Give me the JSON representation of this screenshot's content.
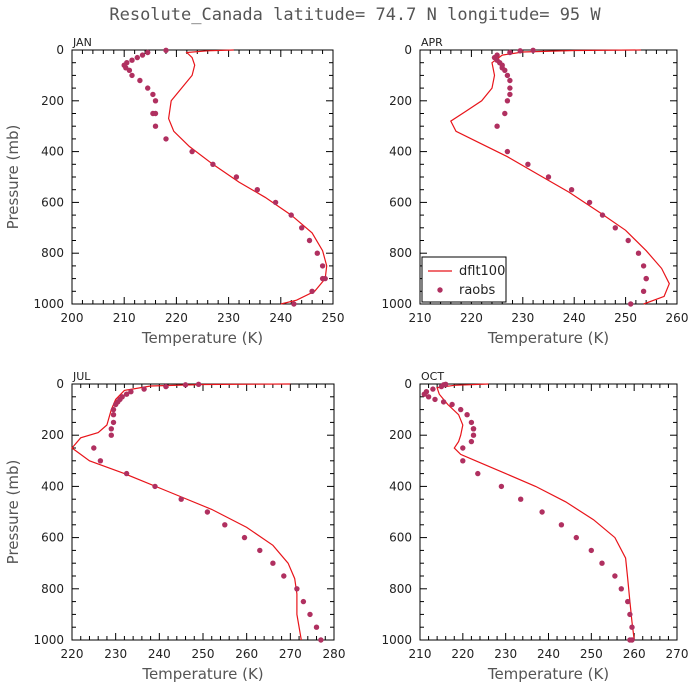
{
  "title": "Resolute_Canada  latitude= 74.7 N longitude= 95 W",
  "legend": {
    "model_label": "dflt100",
    "obs_label": "raobs"
  },
  "colors": {
    "model": "#e8141a",
    "obs": "#b03060"
  },
  "chart_data": [
    {
      "type": "line",
      "panel": "JAN",
      "title": "JAN",
      "xlabel": "Temperature (K)",
      "ylabel": "Pressure (mb)",
      "xlim": [
        200,
        250
      ],
      "ylim": [
        1000,
        0
      ],
      "xticks": [
        200,
        210,
        220,
        230,
        240,
        250
      ],
      "yticks": [
        0,
        200,
        400,
        600,
        800,
        1000
      ],
      "series": [
        {
          "name": "dflt100",
          "kind": "line",
          "x": [
            231,
            226,
            222,
            223,
            223.5,
            223,
            221,
            219,
            218.5,
            219.5,
            222.5,
            227,
            232,
            237,
            242,
            246,
            248,
            248.8,
            248.5,
            246.5,
            243,
            240
          ],
          "y": [
            0,
            3,
            10,
            30,
            60,
            100,
            150,
            200,
            270,
            320,
            380,
            450,
            520,
            580,
            650,
            720,
            790,
            850,
            900,
            950,
            985,
            1000
          ]
        },
        {
          "name": "raobs",
          "kind": "scatter",
          "x": [
            218,
            214.5,
            213.5,
            212.5,
            211.5,
            210.5,
            210,
            210.3,
            211,
            211.5,
            213,
            214.5,
            215.5,
            216,
            216,
            215.5,
            216,
            218,
            223,
            227,
            231.5,
            235.5,
            239,
            242,
            244,
            245.5,
            247,
            248,
            248.5,
            248,
            246,
            242.5
          ],
          "y": [
            1,
            10,
            20,
            30,
            40,
            50,
            60,
            70,
            80,
            100,
            120,
            150,
            175,
            200,
            250,
            250,
            300,
            350,
            400,
            450,
            500,
            550,
            600,
            650,
            700,
            750,
            800,
            850,
            900,
            900,
            950,
            1000
          ]
        }
      ]
    },
    {
      "type": "line",
      "panel": "APR",
      "title": "APR",
      "xlabel": "Temperature (K)",
      "ylabel": "",
      "xlim": [
        210,
        260
      ],
      "ylim": [
        1000,
        0
      ],
      "xticks": [
        210,
        220,
        230,
        240,
        250,
        260
      ],
      "yticks": [
        0,
        200,
        400,
        600,
        800,
        1000
      ],
      "show_legend": true,
      "series": [
        {
          "name": "dflt100",
          "kind": "line",
          "x": [
            253,
            240,
            230,
            226,
            224,
            224.5,
            224,
            222,
            219,
            216,
            217,
            221,
            227,
            233,
            239,
            245,
            250,
            254,
            257,
            258.5,
            257.5,
            253.5
          ],
          "y": [
            0,
            2,
            8,
            20,
            50,
            100,
            150,
            200,
            240,
            280,
            320,
            360,
            420,
            490,
            560,
            640,
            710,
            790,
            860,
            920,
            970,
            1000
          ]
        },
        {
          "name": "raobs",
          "kind": "scatter",
          "x": [
            232,
            229.5,
            227.5,
            225,
            224.5,
            225,
            225.5,
            226,
            226,
            226.5,
            227,
            227.5,
            227.5,
            227.5,
            227,
            226.5,
            225,
            227,
            231,
            235,
            239.5,
            243,
            245.5,
            248,
            250.5,
            252.5,
            253.5,
            254,
            254,
            253.5,
            251
          ],
          "y": [
            1,
            3,
            10,
            20,
            30,
            40,
            50,
            60,
            70,
            80,
            100,
            120,
            150,
            175,
            200,
            250,
            300,
            400,
            450,
            500,
            550,
            600,
            650,
            700,
            750,
            800,
            850,
            900,
            900,
            950,
            1000
          ]
        }
      ]
    },
    {
      "type": "line",
      "panel": "JUL",
      "title": "JUL",
      "xlabel": "Temperature (K)",
      "ylabel": "Pressure (mb)",
      "xlim": [
        220,
        280
      ],
      "ylim": [
        1000,
        0
      ],
      "xticks": [
        220,
        230,
        240,
        250,
        260,
        270,
        280
      ],
      "yticks": [
        0,
        200,
        400,
        600,
        800,
        1000
      ],
      "series": [
        {
          "name": "dflt100",
          "kind": "line",
          "x": [
            270,
            250,
            238,
            232,
            230,
            229,
            228.5,
            228,
            226,
            222,
            220,
            224,
            232,
            242,
            252,
            260,
            266,
            269.5,
            271,
            271.5,
            271.5,
            272.5
          ],
          "y": [
            0,
            2,
            8,
            25,
            60,
            100,
            130,
            160,
            190,
            210,
            250,
            300,
            350,
            420,
            490,
            560,
            630,
            700,
            760,
            820,
            900,
            1000
          ]
        },
        {
          "name": "raobs",
          "kind": "scatter",
          "x": [
            249,
            246,
            241.5,
            236.5,
            233.5,
            232.5,
            231.5,
            231,
            230.5,
            230,
            229.5,
            229.5,
            229.5,
            229,
            229,
            225,
            226.5,
            232.5,
            239,
            245,
            251,
            255,
            259.5,
            263,
            266,
            268.5,
            271.5,
            273,
            274.5,
            276,
            277
          ],
          "y": [
            1,
            3,
            10,
            20,
            30,
            40,
            50,
            60,
            70,
            80,
            100,
            120,
            150,
            175,
            200,
            250,
            300,
            350,
            400,
            450,
            500,
            550,
            600,
            650,
            700,
            750,
            800,
            850,
            900,
            950,
            1000
          ]
        }
      ]
    },
    {
      "type": "line",
      "panel": "OCT",
      "title": "OCT",
      "xlabel": "Temperature (K)",
      "ylabel": "",
      "xlim": [
        210,
        270
      ],
      "ylim": [
        1000,
        0
      ],
      "xticks": [
        210,
        220,
        230,
        240,
        250,
        260,
        270
      ],
      "yticks": [
        0,
        200,
        400,
        600,
        800,
        1000
      ],
      "series": [
        {
          "name": "dflt100",
          "kind": "line",
          "x": [
            226,
            218,
            214,
            214.5,
            216.5,
            219,
            220,
            219.5,
            219,
            218,
            219.5,
            223,
            230,
            237,
            244,
            250.5,
            255.5,
            258,
            258.5,
            259,
            259.5,
            260
          ],
          "y": [
            0,
            5,
            15,
            40,
            80,
            120,
            160,
            200,
            225,
            250,
            275,
            300,
            350,
            400,
            460,
            530,
            600,
            680,
            760,
            850,
            930,
            1000
          ]
        },
        {
          "name": "raobs",
          "kind": "scatter",
          "x": [
            216,
            215.5,
            215,
            213,
            211.5,
            211,
            212,
            213.5,
            215.5,
            217.5,
            219.5,
            221,
            222,
            222.5,
            222.5,
            222.5,
            222,
            220,
            220,
            223.5,
            229,
            233.5,
            238.5,
            243,
            246.5,
            250,
            252.5,
            255.5,
            257,
            258.5,
            259,
            259.5,
            259.5,
            259
          ],
          "y": [
            1,
            3,
            10,
            20,
            30,
            40,
            50,
            60,
            70,
            80,
            100,
            120,
            150,
            175,
            200,
            175,
            225,
            250,
            300,
            350,
            400,
            450,
            500,
            550,
            600,
            650,
            700,
            750,
            800,
            850,
            900,
            950,
            1000,
            1000
          ]
        }
      ]
    }
  ]
}
